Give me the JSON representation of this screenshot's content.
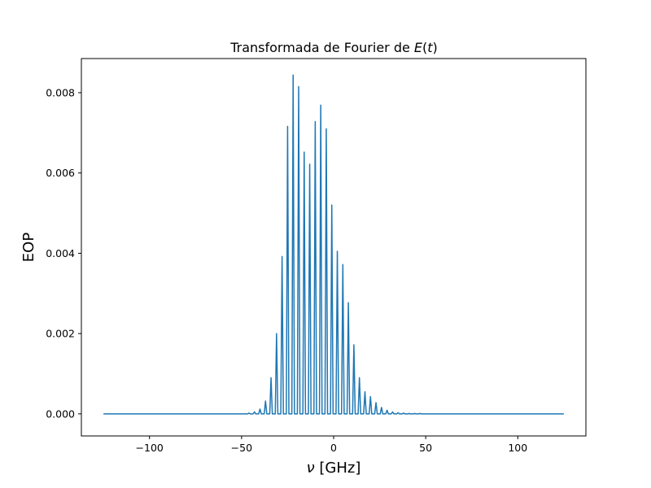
{
  "chart_data": {
    "type": "line",
    "title": {
      "prefix": "Transformada de Fourier de ",
      "math_e": "E",
      "math_open": "(",
      "math_t": "t",
      "math_close": ")"
    },
    "xlabel": {
      "symbol": "ν",
      "unit": " [GHz]"
    },
    "ylabel": "EOP",
    "xlim": [
      -137,
      137
    ],
    "ylim": [
      -0.00055,
      0.00885
    ],
    "xticks": [
      -100,
      -50,
      0,
      50,
      100
    ],
    "xtick_labels": [
      "−100",
      "−50",
      "0",
      "50",
      "100"
    ],
    "yticks": [
      0.0,
      0.002,
      0.004,
      0.006,
      0.008
    ],
    "ytick_labels": [
      "0.000",
      "0.002",
      "0.004",
      "0.006",
      "0.008"
    ],
    "grid": false,
    "line_color": "#1f77b4",
    "x_range": [
      -125,
      125
    ],
    "baseline": 0.0,
    "series": [
      {
        "peaks_x": [
          -46,
          -43,
          -40,
          -37,
          -34,
          -31,
          -28,
          -25,
          -22,
          -19,
          -16,
          -13,
          -10,
          -7,
          -4,
          -1,
          2,
          5,
          8,
          11,
          14,
          17,
          20,
          23,
          26,
          29,
          32,
          35,
          38,
          41,
          44,
          47
        ],
        "peaks_y": [
          2e-05,
          5e-05,
          0.00012,
          0.00032,
          0.0009,
          0.002,
          0.00392,
          0.00716,
          0.00844,
          0.00815,
          0.00652,
          0.00622,
          0.00728,
          0.00769,
          0.0071,
          0.0052,
          0.00405,
          0.00372,
          0.00277,
          0.00172,
          0.0009,
          0.00055,
          0.00043,
          0.00028,
          0.00016,
          9e-05,
          5e-05,
          3e-05,
          2e-05,
          1e-05,
          1e-05,
          1e-05
        ]
      }
    ]
  }
}
